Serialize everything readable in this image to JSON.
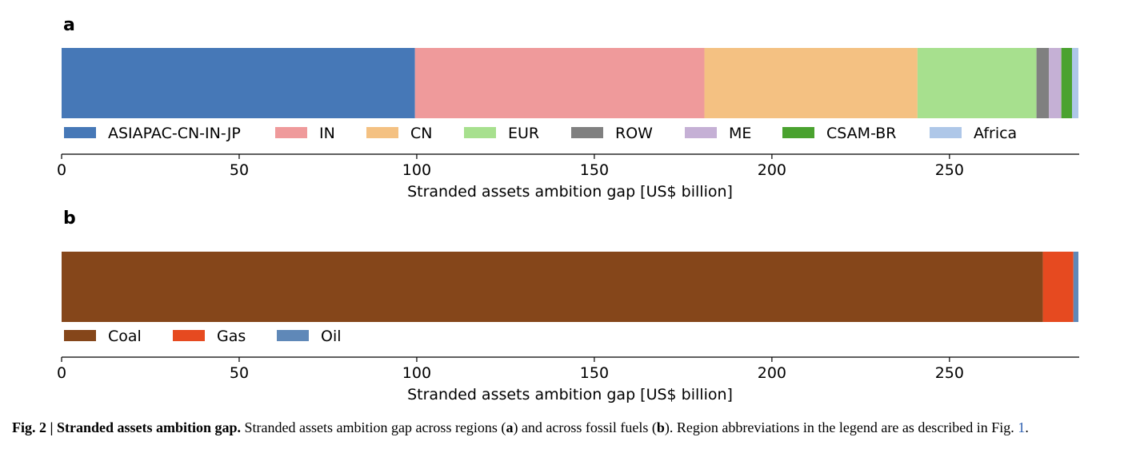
{
  "chart_data": [
    {
      "type": "bar",
      "panel_label": "a",
      "orientation": "horizontal-stacked",
      "series": [
        {
          "name": "ASIAPAC-CN-IN-JP",
          "value": 99.5,
          "color": "#4678b7"
        },
        {
          "name": "IN",
          "value": 81.5,
          "color": "#ef9a9b"
        },
        {
          "name": "CN",
          "value": 60.0,
          "color": "#f4c182"
        },
        {
          "name": "EUR",
          "value": 33.5,
          "color": "#a7e08e"
        },
        {
          "name": "ROW",
          "value": 3.5,
          "color": "#808080"
        },
        {
          "name": "ME",
          "value": 3.5,
          "color": "#c5b0d5"
        },
        {
          "name": "CSAM-BR",
          "value": 3.0,
          "color": "#4aa22f"
        },
        {
          "name": "Africa",
          "value": 1.8,
          "color": "#aec7e8"
        }
      ],
      "xlabel": "Stranded assets ambition gap [US$ billion]",
      "xticks": [
        "0",
        "50",
        "100",
        "150",
        "200",
        "250"
      ],
      "tick_values": [
        0,
        50,
        100,
        150,
        200,
        250
      ],
      "xlim": [
        0,
        286.3
      ],
      "legend_position": "below-bar"
    },
    {
      "type": "bar",
      "panel_label": "b",
      "orientation": "horizontal-stacked",
      "series": [
        {
          "name": "Coal",
          "value": 276.3,
          "color": "#85461a"
        },
        {
          "name": "Gas",
          "value": 8.6,
          "color": "#e64a20"
        },
        {
          "name": "Oil",
          "value": 1.4,
          "color": "#5f88b8"
        }
      ],
      "xlabel": "Stranded assets ambition gap [US$ billion]",
      "xticks": [
        "0",
        "50",
        "100",
        "150",
        "200",
        "250"
      ],
      "tick_values": [
        0,
        50,
        100,
        150,
        200,
        250
      ],
      "xlim": [
        0,
        286.3
      ],
      "legend_position": "below-bar"
    }
  ],
  "caption": {
    "lead": "Fig. 2 | Stranded assets ambition gap.",
    "part1": " Stranded assets ambition gap across regions (",
    "a": "a",
    "part2": ") and across fossil fuels (",
    "b": "b",
    "part3": "). Region abbreviations in the legend are as described in Fig. ",
    "ref": "1",
    "end": "."
  }
}
